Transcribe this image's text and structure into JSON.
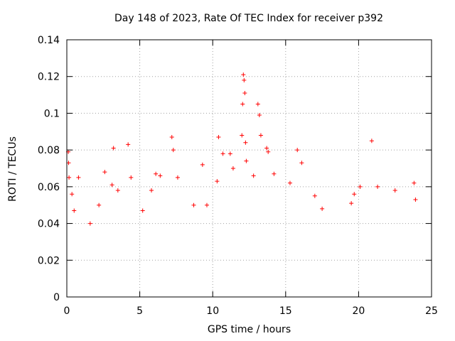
{
  "chart_data": {
    "type": "scatter",
    "title": "Day 148 of 2023, Rate Of TEC Index for receiver p392",
    "xlabel": "GPS time / hours",
    "ylabel": "ROTI / TECUs",
    "xlim": [
      0,
      25
    ],
    "ylim": [
      0,
      0.14
    ],
    "x_ticks": [
      "0",
      "5",
      "10",
      "15",
      "20",
      "25"
    ],
    "y_ticks": [
      "0",
      "0.02",
      "0.04",
      "0.06",
      "0.08",
      "0.1",
      "0.12",
      "0.14"
    ],
    "grid": true,
    "marker": "+",
    "color": "#ff0000",
    "series": [
      {
        "points": [
          [
            0.1,
            0.079
          ],
          [
            0.12,
            0.073
          ],
          [
            0.15,
            0.065
          ],
          [
            0.35,
            0.056
          ],
          [
            0.5,
            0.047
          ],
          [
            0.8,
            0.065
          ],
          [
            1.6,
            0.04
          ],
          [
            2.2,
            0.05
          ],
          [
            2.6,
            0.068
          ],
          [
            3.1,
            0.061
          ],
          [
            3.2,
            0.081
          ],
          [
            3.5,
            0.058
          ],
          [
            4.2,
            0.083
          ],
          [
            4.4,
            0.065
          ],
          [
            5.2,
            0.047
          ],
          [
            5.8,
            0.058
          ],
          [
            6.1,
            0.067
          ],
          [
            6.4,
            0.066
          ],
          [
            7.2,
            0.087
          ],
          [
            7.3,
            0.08
          ],
          [
            7.6,
            0.065
          ],
          [
            8.7,
            0.05
          ],
          [
            9.3,
            0.072
          ],
          [
            9.6,
            0.05
          ],
          [
            10.3,
            0.063
          ],
          [
            10.4,
            0.087
          ],
          [
            10.7,
            0.078
          ],
          [
            11.2,
            0.078
          ],
          [
            11.4,
            0.07
          ],
          [
            12.0,
            0.088
          ],
          [
            12.05,
            0.105
          ],
          [
            12.1,
            0.121
          ],
          [
            12.15,
            0.118
          ],
          [
            12.2,
            0.111
          ],
          [
            12.25,
            0.084
          ],
          [
            12.3,
            0.074
          ],
          [
            12.8,
            0.066
          ],
          [
            13.1,
            0.105
          ],
          [
            13.2,
            0.099
          ],
          [
            13.3,
            0.088
          ],
          [
            13.7,
            0.081
          ],
          [
            13.8,
            0.079
          ],
          [
            14.2,
            0.067
          ],
          [
            15.3,
            0.062
          ],
          [
            15.8,
            0.08
          ],
          [
            16.1,
            0.073
          ],
          [
            17.0,
            0.055
          ],
          [
            17.5,
            0.048
          ],
          [
            19.5,
            0.051
          ],
          [
            19.7,
            0.056
          ],
          [
            20.1,
            0.06
          ],
          [
            20.9,
            0.085
          ],
          [
            21.3,
            0.06
          ],
          [
            22.5,
            0.058
          ],
          [
            23.8,
            0.062
          ],
          [
            23.9,
            0.053
          ]
        ]
      }
    ]
  }
}
